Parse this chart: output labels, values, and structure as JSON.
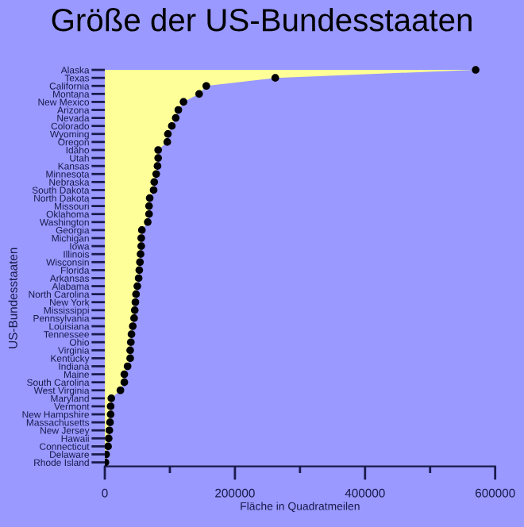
{
  "chart_data": {
    "type": "area",
    "orientation": "horizontal",
    "title": "Größe der US-Bundesstaaten",
    "xlabel": "Fläche in Quadratmeilen",
    "ylabel": "US-Bundesstaaten",
    "categories": [
      "Alaska",
      "Texas",
      "California",
      "Montana",
      "New Mexico",
      "Arizona",
      "Nevada",
      "Colorado",
      "Wyoming",
      "Oregon",
      "Idaho",
      "Utah",
      "Kansas",
      "Minnesota",
      "Nebraska",
      "South Dakota",
      "North Dakota",
      "Missouri",
      "Oklahoma",
      "Washington",
      "Georgia",
      "Michigan",
      "Iowa",
      "Illinois",
      "Wisconsin",
      "Florida",
      "Arkansas",
      "Alabama",
      "North Carolina",
      "New York",
      "Mississippi",
      "Pennsylvania",
      "Louisiana",
      "Tennessee",
      "Ohio",
      "Virginia",
      "Kentucky",
      "Indiana",
      "Maine",
      "South Carolina",
      "West Virginia",
      "Maryland",
      "Vermont",
      "New Hampshire",
      "Massachusetts",
      "New Jersey",
      "Hawaii",
      "Connecticut",
      "Delaware",
      "Rhode Island"
    ],
    "series": [
      {
        "color": "#ffff99",
        "values": [
          570000,
          262000,
          156000,
          145000,
          121000,
          113000,
          109000,
          103000,
          97000,
          96000,
          82000,
          82000,
          81000,
          79000,
          76000,
          75000,
          69000,
          68000,
          68000,
          66000,
          57000,
          56000,
          56000,
          55000,
          54000,
          53000,
          52000,
          50000,
          48000,
          47000,
          46000,
          45000,
          43000,
          41000,
          40000,
          39000,
          39000,
          35000,
          30000,
          30000,
          24000,
          10000,
          9000,
          9000,
          8000,
          7000,
          6000,
          5000,
          2000,
          1000
        ]
      },
      {
        "type": "scatter",
        "color": "#000000",
        "marker": "circle",
        "values": [
          570000,
          262000,
          156000,
          145000,
          121000,
          113000,
          109000,
          103000,
          97000,
          96000,
          82000,
          82000,
          81000,
          79000,
          76000,
          75000,
          69000,
          68000,
          68000,
          66000,
          57000,
          56000,
          56000,
          55000,
          54000,
          53000,
          52000,
          50000,
          48000,
          47000,
          46000,
          45000,
          43000,
          41000,
          40000,
          39000,
          39000,
          35000,
          30000,
          30000,
          24000,
          10000,
          9000,
          9000,
          8000,
          7000,
          6000,
          5000,
          2000,
          1000
        ]
      }
    ],
    "xlim": [
      0,
      600000
    ],
    "xticks": [
      0,
      {
        "value": 100000,
        "label": null
      },
      200000,
      {
        "value": 300000,
        "label": null
      },
      400000,
      {
        "value": 500000,
        "label": null
      },
      600000
    ],
    "grid": false,
    "legend": false
  }
}
